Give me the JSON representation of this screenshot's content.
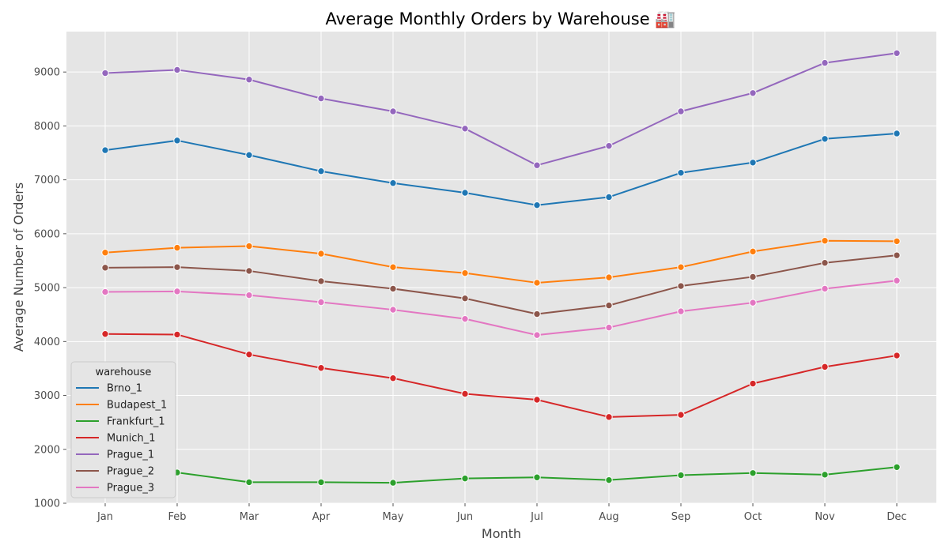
{
  "chart_data": {
    "type": "line",
    "title": "Average Monthly Orders by Warehouse 🏭",
    "xlabel": "Month",
    "ylabel": "Average Number of Orders",
    "categories": [
      "Jan",
      "Feb",
      "Mar",
      "Apr",
      "May",
      "Jun",
      "Jul",
      "Aug",
      "Sep",
      "Oct",
      "Nov",
      "Dec"
    ],
    "ylim": [
      1000,
      9750
    ],
    "yticks": [
      1000,
      2000,
      3000,
      4000,
      5000,
      6000,
      7000,
      8000,
      9000
    ],
    "grid": true,
    "legend": {
      "title": "warehouse",
      "placement": "bottom-left"
    },
    "series": [
      {
        "name": "Brno_1",
        "color": "#1f77b4",
        "values": [
          7550,
          7730,
          7460,
          7160,
          6940,
          6760,
          6530,
          6680,
          7130,
          7320,
          7760,
          7860
        ]
      },
      {
        "name": "Budapest_1",
        "color": "#ff7f0e",
        "values": [
          5650,
          5740,
          5770,
          5630,
          5380,
          5270,
          5090,
          5190,
          5380,
          5670,
          5870,
          5860
        ]
      },
      {
        "name": "Frankfurt_1",
        "color": "#2ca02c",
        "values": [
          1660,
          1570,
          1390,
          1390,
          1380,
          1460,
          1480,
          1430,
          1520,
          1560,
          1530,
          1670
        ]
      },
      {
        "name": "Munich_1",
        "color": "#d62728",
        "values": [
          4140,
          4130,
          3760,
          3510,
          3320,
          3030,
          2920,
          2600,
          2640,
          3220,
          3530,
          3740
        ]
      },
      {
        "name": "Prague_1",
        "color": "#9467bd",
        "values": [
          8980,
          9040,
          8860,
          8510,
          8270,
          7950,
          7270,
          7630,
          8270,
          8610,
          9170,
          9350
        ]
      },
      {
        "name": "Prague_2",
        "color": "#8c564b",
        "values": [
          5370,
          5380,
          5310,
          5120,
          4980,
          4800,
          4510,
          4670,
          5030,
          5200,
          5460,
          5600
        ]
      },
      {
        "name": "Prague_3",
        "color": "#e377c2",
        "values": [
          4920,
          4930,
          4860,
          4730,
          4590,
          4420,
          4120,
          4260,
          4560,
          4720,
          4980,
          5130
        ]
      }
    ]
  }
}
